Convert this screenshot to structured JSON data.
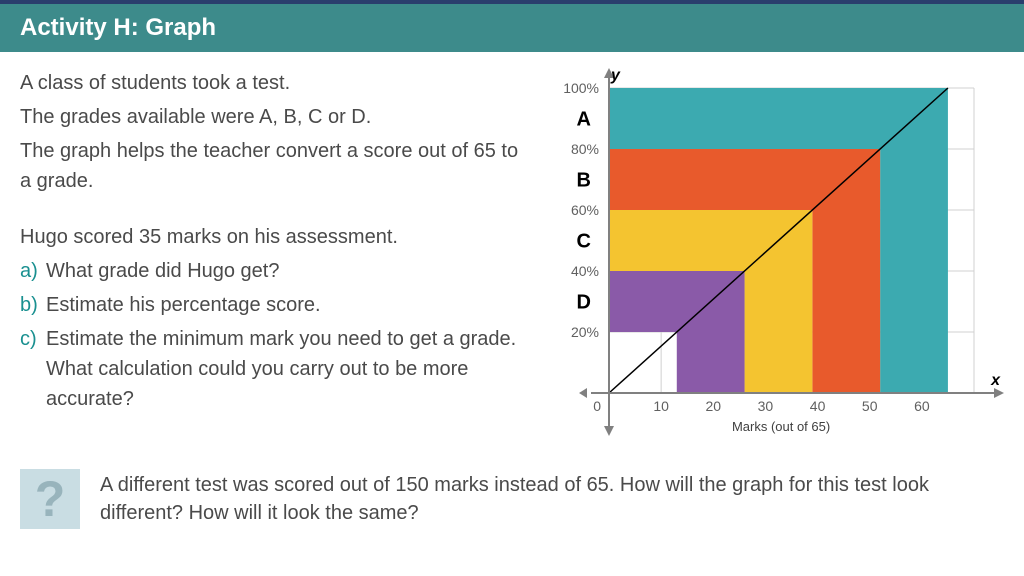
{
  "header": {
    "title": "Activity H: Graph"
  },
  "intro": {
    "line1": "A class of students took a test.",
    "line2": "The grades available were A, B, C or D.",
    "line3": "The graph helps the teacher convert a score out of 65 to a grade.",
    "line4": "Hugo scored 35 marks on his assessment."
  },
  "questions": {
    "a": {
      "label": "a)",
      "text": "What grade did Hugo get?"
    },
    "b": {
      "label": "b)",
      "text": "Estimate his percentage score."
    },
    "c": {
      "label": "c)",
      "text": "Estimate the minimum mark you need to get a grade. What calculation could you carry out to be more accurate?"
    }
  },
  "think": {
    "q": "?",
    "text": "A different test was scored out of 150 marks instead of 65. How will the graph for this test look different? How will it look the same?"
  },
  "chart": {
    "type": "area-step",
    "x_axis_label": "Marks (out of 65)",
    "y_label_axis": "y",
    "x_label_axis": "x",
    "x_max": 65,
    "y_max": 100,
    "x_ticks": [
      0,
      10,
      20,
      30,
      40,
      50,
      60
    ],
    "y_ticks": [
      {
        "val": 20,
        "label": "20%"
      },
      {
        "val": 40,
        "label": "40%"
      },
      {
        "val": 60,
        "label": "60%"
      },
      {
        "val": 80,
        "label": "80%"
      },
      {
        "val": 100,
        "label": "100%"
      }
    ],
    "grid_color": "#d0d0d0",
    "axis_color": "#808080",
    "bands": [
      {
        "name": "D",
        "x_from": 13,
        "x_to": 26,
        "y_from": 20,
        "y_to": 40,
        "color": "#8a5aa8"
      },
      {
        "name": "C",
        "x_from": 26,
        "x_to": 39,
        "y_from": 40,
        "y_to": 60,
        "color": "#f4c430"
      },
      {
        "name": "B",
        "x_from": 39,
        "x_to": 52,
        "y_from": 60,
        "y_to": 80,
        "color": "#e85a2c"
      },
      {
        "name": "A",
        "x_from": 52,
        "x_to": 65,
        "y_from": 80,
        "y_to": 100,
        "color": "#3caab0"
      }
    ],
    "diagonal": {
      "from_x": 0,
      "from_y": 0,
      "to_x": 65,
      "to_y": 100,
      "color": "#000000"
    },
    "label_color": "#000000",
    "tick_label_color": "#606060"
  }
}
